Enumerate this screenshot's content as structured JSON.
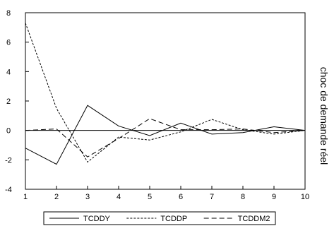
{
  "chart_data": {
    "type": "line",
    "title": "",
    "side_label": "choc de demande réel",
    "x": [
      1,
      2,
      3,
      4,
      5,
      6,
      7,
      8,
      9,
      10
    ],
    "xlim": [
      1,
      10
    ],
    "ylim": [
      -4,
      8
    ],
    "x_ticks": [
      1,
      2,
      3,
      4,
      5,
      6,
      7,
      8,
      9,
      10
    ],
    "y_ticks": [
      -4,
      -2,
      0,
      2,
      4,
      6,
      8
    ],
    "zero_line": true,
    "grid": false,
    "legend_position": "bottom",
    "series": [
      {
        "name": "TCDDY",
        "style": "solid",
        "color": "#000000",
        "values": [
          -1.2,
          -2.3,
          1.7,
          0.3,
          -0.35,
          0.5,
          -0.25,
          -0.15,
          0.25,
          0.0
        ]
      },
      {
        "name": "TCDDP",
        "style": "dotted",
        "color": "#000000",
        "values": [
          7.3,
          1.5,
          -2.15,
          -0.45,
          -0.65,
          -0.1,
          0.75,
          0.05,
          -0.25,
          0.0
        ]
      },
      {
        "name": "TCDDM2",
        "style": "dashed",
        "color": "#000000",
        "values": [
          0.0,
          0.1,
          -1.8,
          -0.55,
          0.8,
          0.05,
          0.05,
          0.1,
          -0.15,
          0.0
        ]
      }
    ]
  }
}
